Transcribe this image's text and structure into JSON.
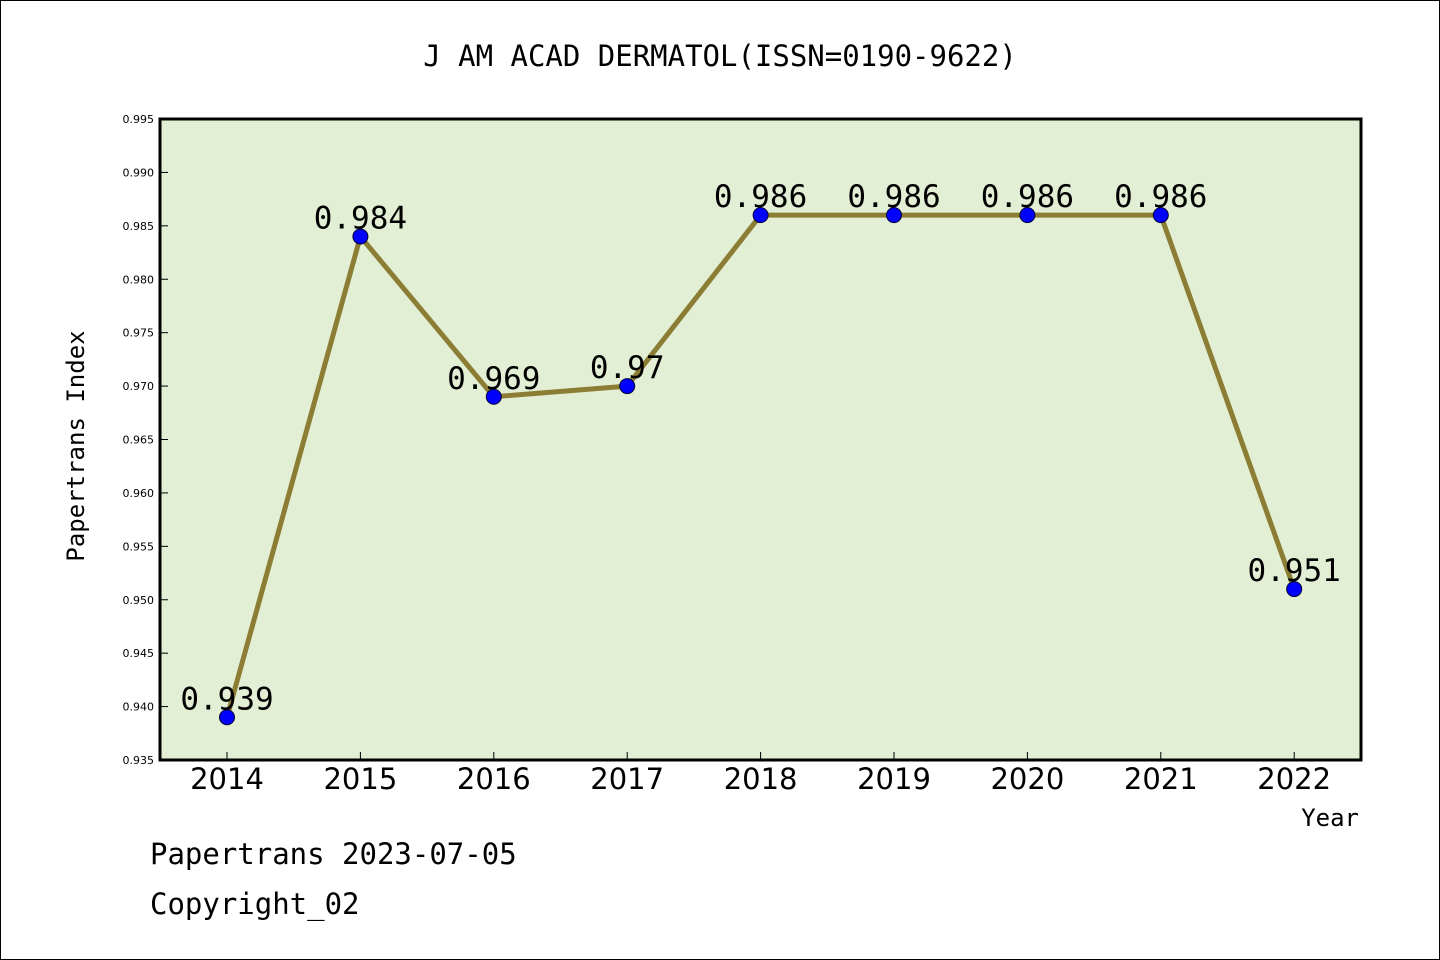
{
  "footer": {
    "stamp": "Papertrans 2023-07-05",
    "copyright": "Copyright_02"
  },
  "colors": {
    "plot_bg": "#e2efd4",
    "line": "#8b7d34",
    "marker": "#0000ff",
    "axis": "#000000"
  },
  "chart_data": {
    "type": "line",
    "title": "J AM ACAD DERMATOL(ISSN=0190-9622)",
    "xlabel": "Year",
    "ylabel": "Papertrans Index",
    "categories": [
      "2014",
      "2015",
      "2016",
      "2017",
      "2018",
      "2019",
      "2020",
      "2021",
      "2022"
    ],
    "values": [
      0.939,
      0.984,
      0.969,
      0.97,
      0.986,
      0.986,
      0.986,
      0.986,
      0.951
    ],
    "data_labels": [
      "0.939",
      "0.984",
      "0.969",
      "0.97",
      "0.986",
      "0.986",
      "0.986",
      "0.986",
      "0.951"
    ],
    "ylim": [
      0.935,
      0.995
    ],
    "yticks": [
      "0.935",
      "0.940",
      "0.945",
      "0.950",
      "0.955",
      "0.960",
      "0.965",
      "0.970",
      "0.975",
      "0.980",
      "0.985",
      "0.990",
      "0.995"
    ],
    "grid": false,
    "legend": "none"
  }
}
